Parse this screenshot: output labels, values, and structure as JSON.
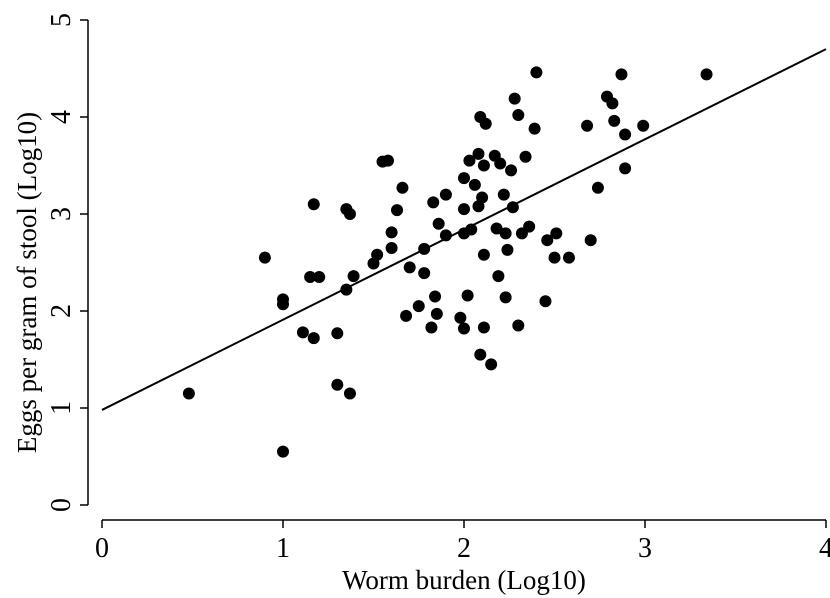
{
  "chart_data": {
    "type": "scatter",
    "xlabel": "Worm burden (Log10)",
    "ylabel": "Eggs per gram of stool (Log10)",
    "xlim": [
      0,
      4
    ],
    "ylim": [
      0,
      5
    ],
    "xticks": [
      "0",
      "1",
      "2",
      "3",
      "4"
    ],
    "yticks": [
      "0",
      "1",
      "2",
      "3",
      "4",
      "5"
    ],
    "grid": false,
    "legend": "none",
    "fit_line": {
      "intercept": 0.98,
      "slope": 0.93
    },
    "points": [
      [
        0.48,
        1.15
      ],
      [
        0.9,
        2.55
      ],
      [
        1.0,
        2.12
      ],
      [
        1.0,
        2.07
      ],
      [
        1.0,
        0.55
      ],
      [
        1.11,
        1.78
      ],
      [
        1.15,
        2.35
      ],
      [
        1.17,
        1.72
      ],
      [
        1.17,
        3.1
      ],
      [
        1.2,
        2.35
      ],
      [
        1.3,
        1.77
      ],
      [
        1.3,
        1.24
      ],
      [
        1.35,
        3.05
      ],
      [
        1.35,
        2.22
      ],
      [
        1.37,
        3.0
      ],
      [
        1.37,
        1.15
      ],
      [
        1.39,
        2.36
      ],
      [
        1.5,
        2.49
      ],
      [
        1.52,
        2.58
      ],
      [
        1.55,
        3.54
      ],
      [
        1.58,
        3.55
      ],
      [
        1.6,
        2.65
      ],
      [
        1.6,
        2.81
      ],
      [
        1.63,
        3.04
      ],
      [
        1.66,
        3.27
      ],
      [
        1.68,
        1.95
      ],
      [
        1.7,
        2.45
      ],
      [
        1.75,
        2.05
      ],
      [
        1.78,
        2.64
      ],
      [
        1.78,
        2.39
      ],
      [
        1.82,
        1.83
      ],
      [
        1.83,
        3.12
      ],
      [
        1.84,
        2.15
      ],
      [
        1.85,
        1.97
      ],
      [
        1.86,
        2.9
      ],
      [
        1.9,
        2.78
      ],
      [
        1.9,
        3.2
      ],
      [
        1.98,
        1.93
      ],
      [
        2.0,
        1.82
      ],
      [
        2.0,
        3.05
      ],
      [
        2.0,
        3.37
      ],
      [
        2.0,
        2.8
      ],
      [
        2.02,
        2.16
      ],
      [
        2.03,
        3.55
      ],
      [
        2.04,
        2.84
      ],
      [
        2.06,
        3.3
      ],
      [
        2.08,
        3.08
      ],
      [
        2.08,
        3.62
      ],
      [
        2.09,
        4.0
      ],
      [
        2.09,
        1.55
      ],
      [
        2.1,
        3.17
      ],
      [
        2.11,
        3.5
      ],
      [
        2.11,
        2.58
      ],
      [
        2.11,
        1.83
      ],
      [
        2.12,
        3.93
      ],
      [
        2.15,
        1.45
      ],
      [
        2.17,
        3.6
      ],
      [
        2.18,
        2.85
      ],
      [
        2.19,
        2.36
      ],
      [
        2.2,
        3.52
      ],
      [
        2.22,
        3.2
      ],
      [
        2.23,
        2.14
      ],
      [
        2.23,
        2.8
      ],
      [
        2.24,
        2.63
      ],
      [
        2.26,
        3.45
      ],
      [
        2.27,
        3.07
      ],
      [
        2.28,
        4.19
      ],
      [
        2.3,
        4.02
      ],
      [
        2.3,
        1.85
      ],
      [
        2.32,
        2.8
      ],
      [
        2.34,
        3.59
      ],
      [
        2.36,
        2.87
      ],
      [
        2.39,
        3.88
      ],
      [
        2.4,
        4.46
      ],
      [
        2.45,
        2.1
      ],
      [
        2.46,
        2.73
      ],
      [
        2.5,
        2.55
      ],
      [
        2.51,
        2.8
      ],
      [
        2.58,
        2.55
      ],
      [
        2.68,
        3.91
      ],
      [
        2.7,
        2.73
      ],
      [
        2.74,
        3.27
      ],
      [
        2.79,
        4.21
      ],
      [
        2.82,
        4.14
      ],
      [
        2.83,
        3.96
      ],
      [
        2.87,
        4.44
      ],
      [
        2.89,
        3.82
      ],
      [
        2.89,
        3.47
      ],
      [
        2.99,
        3.91
      ],
      [
        3.34,
        4.44
      ]
    ]
  }
}
